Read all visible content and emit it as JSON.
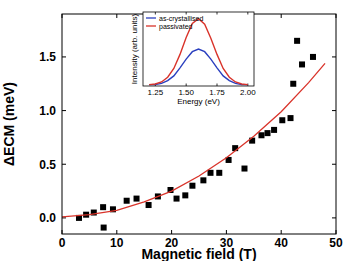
{
  "chart_data": [
    {
      "type": "scatter",
      "x_label": "Magnetic field (T)",
      "y_label": "ΔECM (meV)",
      "xlim": [
        0,
        50
      ],
      "ylim": [
        -0.15,
        1.9
      ],
      "xticks": [
        0,
        10,
        20,
        30,
        40,
        50
      ],
      "yticks": [
        {
          "value": 0,
          "label": "0.0"
        },
        {
          "value": 0.5,
          "label": "0.5"
        },
        {
          "value": 1,
          "label": "1.0"
        },
        {
          "value": 1.5,
          "label": "1.5"
        }
      ],
      "series": [
        {
          "type": "scatter",
          "color": "#000000",
          "marker": "square",
          "x": [
            3.1,
            4.4,
            5.8,
            7.5,
            7.6,
            9.3,
            11.8,
            13.6,
            15.8,
            17.5,
            19.8,
            20.9,
            22.5,
            23.8,
            25.8,
            27.1,
            28.7,
            30.4,
            31.6,
            33.3,
            34.7,
            36.4,
            37.5,
            38.7,
            40.2,
            41.7,
            42.2,
            42.9,
            43.8,
            45.8
          ],
          "values": [
            0.0,
            0.03,
            0.05,
            0.1,
            -0.09,
            0.08,
            0.16,
            0.18,
            0.12,
            0.2,
            0.26,
            0.18,
            0.21,
            0.3,
            0.35,
            0.42,
            0.42,
            0.54,
            0.65,
            0.46,
            0.72,
            0.77,
            0.79,
            0.82,
            0.91,
            0.93,
            1.25,
            1.65,
            1.43,
            1.5
          ]
        },
        {
          "type": "line",
          "color": "#d9332a",
          "x": [
            0,
            5,
            10,
            15,
            20,
            25,
            30,
            35,
            40,
            45,
            48
          ],
          "values": [
            0.01,
            0.03,
            0.07,
            0.15,
            0.25,
            0.39,
            0.56,
            0.76,
            0.99,
            1.26,
            1.44
          ]
        }
      ]
    },
    {
      "type": "line",
      "x_label": "Energy (eV)",
      "y_label": "Intensity (arb. units)",
      "xlim": [
        1.15,
        2.05
      ],
      "ylim": [
        0,
        1.1
      ],
      "xticks": [
        1.25,
        {
          "value": 1.5,
          "label": "1.50"
        },
        1.75,
        {
          "value": 2,
          "label": "2.00"
        }
      ],
      "tick_labels": "x",
      "legend": "upper left",
      "x": [
        1.2,
        1.25,
        1.3,
        1.35,
        1.4,
        1.45,
        1.5,
        1.55,
        1.6,
        1.65,
        1.7,
        1.75,
        1.8,
        1.85,
        1.9,
        1.95,
        2.0
      ],
      "series": [
        {
          "name": "as-crystallised",
          "color": "#2a3fbf",
          "values": [
            0.02,
            0.02,
            0.04,
            0.08,
            0.15,
            0.27,
            0.4,
            0.51,
            0.55,
            0.51,
            0.4,
            0.27,
            0.15,
            0.08,
            0.04,
            0.02,
            0.02
          ]
        },
        {
          "name": "passivated",
          "color": "#d9332a",
          "values": [
            0.02,
            0.03,
            0.06,
            0.13,
            0.26,
            0.47,
            0.72,
            0.93,
            1.0,
            0.92,
            0.71,
            0.47,
            0.26,
            0.13,
            0.06,
            0.03,
            0.02
          ]
        }
      ]
    }
  ]
}
